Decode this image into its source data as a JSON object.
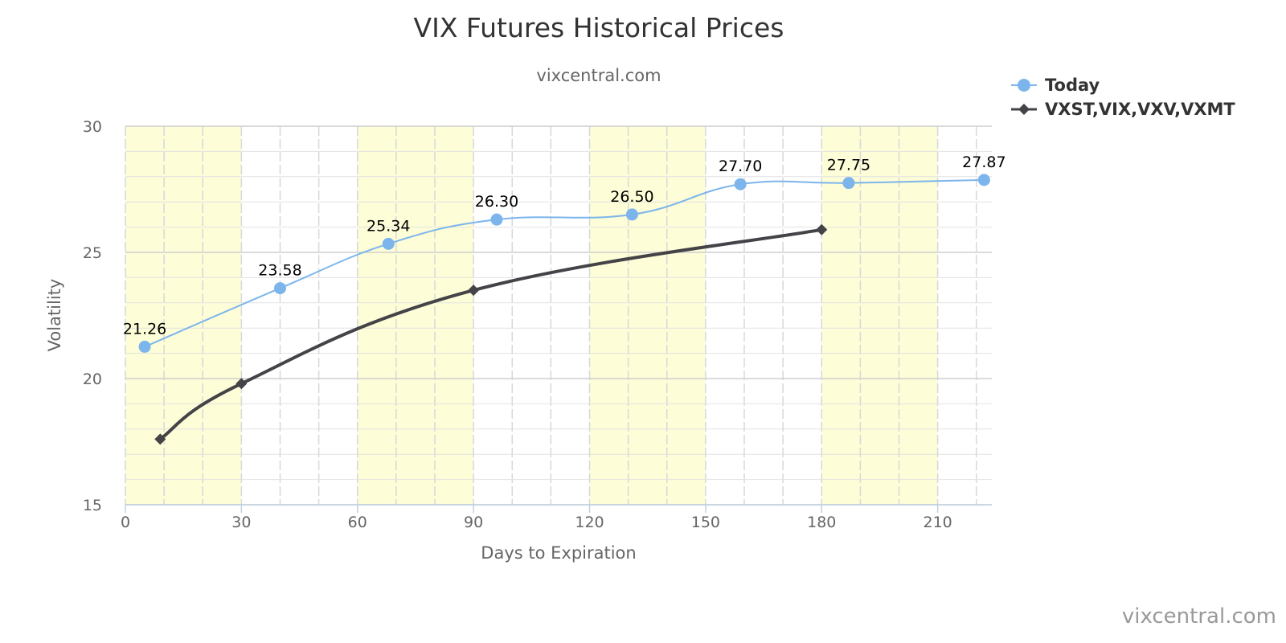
{
  "chart_data": {
    "type": "line",
    "title": "VIX Futures Historical Prices",
    "subtitle": "vixcentral.com",
    "xlabel": "Days to Expiration",
    "ylabel": "Volatility",
    "xlim": [
      0,
      224
    ],
    "ylim": [
      15,
      30
    ],
    "x_ticks": [
      "0",
      "30",
      "60",
      "90",
      "120",
      "150",
      "180",
      "210"
    ],
    "y_ticks": [
      "15",
      "20",
      "25",
      "30"
    ],
    "grid": true,
    "shaded_bands": [
      [
        0,
        30
      ],
      [
        60,
        90
      ],
      [
        120,
        150
      ],
      [
        180,
        210
      ]
    ],
    "band_color": "#fdfdd7",
    "legend_position": "top-right",
    "series": [
      {
        "name": "Today",
        "color": "#7cb5ec",
        "marker": "circle",
        "x": [
          5,
          40,
          68,
          96,
          131,
          159,
          187,
          222
        ],
        "y": [
          21.26,
          23.58,
          25.34,
          26.3,
          26.5,
          27.7,
          27.75,
          27.87
        ],
        "labels": [
          "21.26",
          "23.58",
          "25.34",
          "26.30",
          "26.50",
          "27.70",
          "27.75",
          "27.87"
        ]
      },
      {
        "name": "VXST,VIX,VXV,VXMT",
        "color": "#434348",
        "marker": "diamond",
        "x": [
          9,
          30,
          90,
          180
        ],
        "y": [
          17.6,
          19.8,
          23.5,
          25.9
        ]
      }
    ]
  },
  "credits": "vixcentral.com"
}
